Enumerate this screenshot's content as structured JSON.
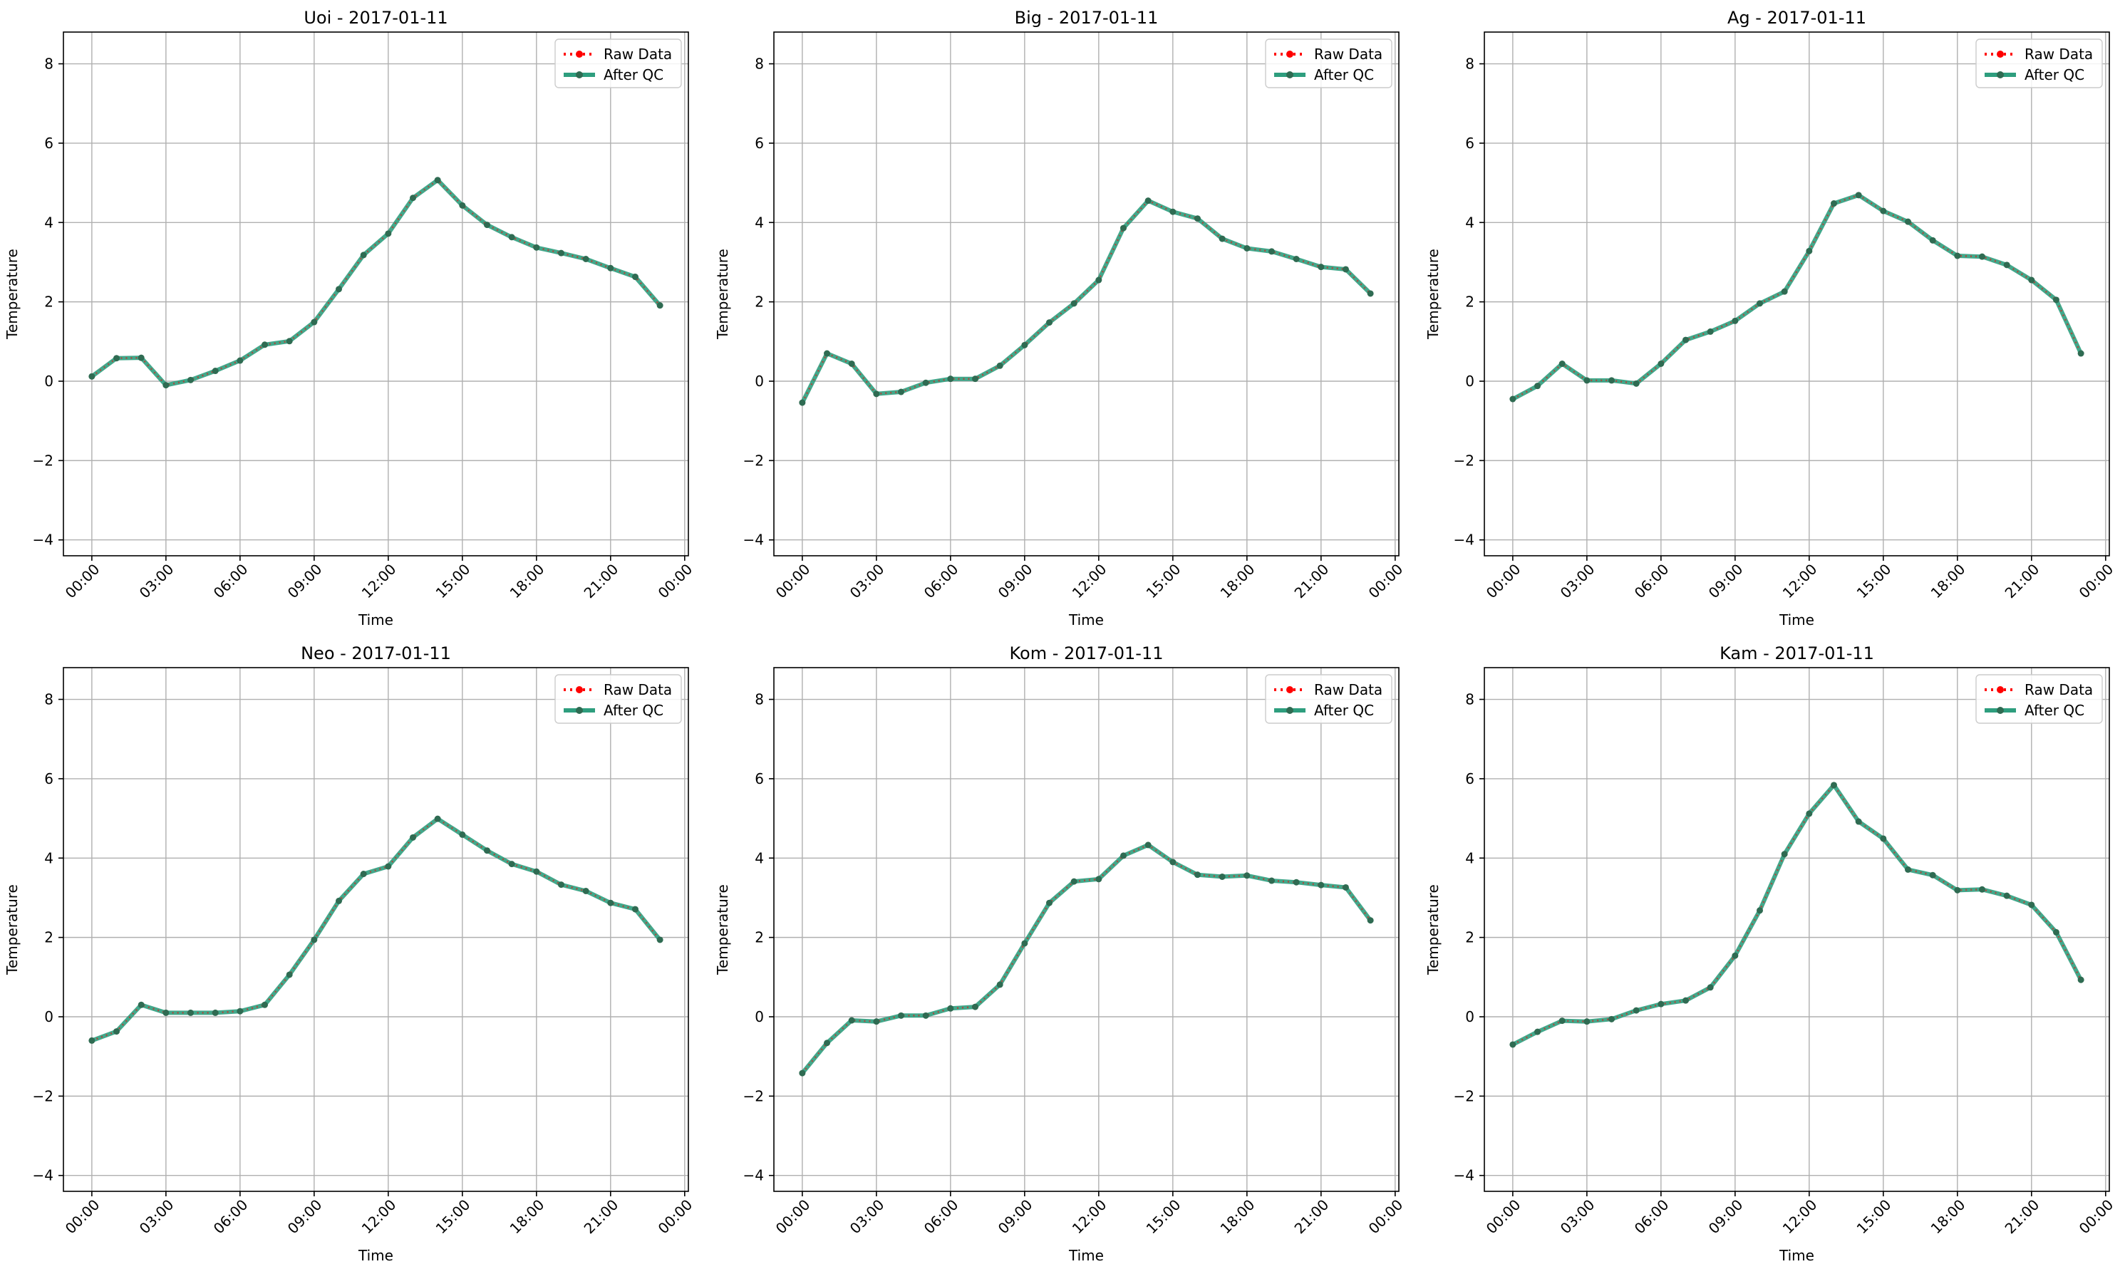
{
  "figure": {
    "legend": {
      "raw_label": "Raw Data",
      "qc_label": "After QC"
    },
    "colors": {
      "raw": "#ff0000",
      "qc": "#2e9e7e",
      "marker": "#2f6b52",
      "grid": "#b0b0b0",
      "axes": "#000000"
    }
  },
  "chart_data": [
    {
      "type": "line",
      "title": "Uoi - 2017-01-11",
      "xlabel": "Time",
      "ylabel": "Temperature",
      "ylim": [
        -4.4,
        8.8
      ],
      "xlim": [
        "2017-01-10 22:51",
        "2017-01-12 00:09"
      ],
      "yticks": [
        -4,
        -2,
        0,
        2,
        4,
        6,
        8
      ],
      "xticks": [
        "00:00",
        "03:00",
        "06:00",
        "09:00",
        "12:00",
        "15:00",
        "18:00",
        "21:00",
        "00:00"
      ],
      "grid": true,
      "legend_position": "top-right",
      "x": [
        "00:00",
        "01:00",
        "02:00",
        "03:00",
        "04:00",
        "05:00",
        "06:00",
        "07:00",
        "08:00",
        "09:00",
        "10:00",
        "11:00",
        "12:00",
        "13:00",
        "14:00",
        "15:00",
        "16:00",
        "17:00",
        "18:00",
        "19:00",
        "20:00",
        "21:00",
        "22:00",
        "23:00"
      ],
      "series": [
        {
          "name": "Raw Data",
          "values": [
            0.12,
            0.58,
            0.59,
            -0.1,
            0.03,
            0.26,
            0.52,
            0.92,
            1.01,
            1.49,
            2.32,
            3.18,
            3.72,
            4.62,
            5.07,
            4.43,
            3.94,
            3.63,
            3.37,
            3.23,
            3.08,
            2.85,
            2.63,
            1.91
          ]
        },
        {
          "name": "After QC",
          "values": [
            0.12,
            0.58,
            0.59,
            -0.1,
            0.03,
            0.26,
            0.52,
            0.92,
            1.01,
            1.49,
            2.32,
            3.18,
            3.72,
            4.62,
            5.07,
            4.43,
            3.94,
            3.63,
            3.37,
            3.23,
            3.08,
            2.85,
            2.63,
            1.91
          ]
        }
      ]
    },
    {
      "type": "line",
      "title": "Big - 2017-01-11",
      "xlabel": "Time",
      "ylabel": "Temperature",
      "ylim": [
        -4.4,
        8.8
      ],
      "xlim": [
        "2017-01-10 22:51",
        "2017-01-12 00:09"
      ],
      "yticks": [
        -4,
        -2,
        0,
        2,
        4,
        6,
        8
      ],
      "xticks": [
        "00:00",
        "03:00",
        "06:00",
        "09:00",
        "12:00",
        "15:00",
        "18:00",
        "21:00",
        "00:00"
      ],
      "grid": true,
      "legend_position": "top-right",
      "x": [
        "00:00",
        "01:00",
        "02:00",
        "03:00",
        "04:00",
        "05:00",
        "06:00",
        "07:00",
        "08:00",
        "09:00",
        "10:00",
        "11:00",
        "12:00",
        "13:00",
        "14:00",
        "15:00",
        "16:00",
        "17:00",
        "18:00",
        "19:00",
        "20:00",
        "21:00",
        "22:00",
        "23:00"
      ],
      "series": [
        {
          "name": "Raw Data",
          "values": [
            -0.54,
            0.7,
            0.44,
            -0.32,
            -0.27,
            -0.04,
            0.06,
            0.06,
            0.39,
            0.91,
            1.48,
            1.96,
            2.55,
            3.86,
            4.55,
            4.27,
            4.1,
            3.59,
            3.35,
            3.27,
            3.08,
            2.88,
            2.82,
            2.21
          ]
        },
        {
          "name": "After QC",
          "values": [
            -0.54,
            0.7,
            0.44,
            -0.32,
            -0.27,
            -0.04,
            0.06,
            0.06,
            0.39,
            0.91,
            1.48,
            1.96,
            2.55,
            3.86,
            4.55,
            4.27,
            4.1,
            3.59,
            3.35,
            3.27,
            3.08,
            2.88,
            2.82,
            2.21
          ]
        }
      ]
    },
    {
      "type": "line",
      "title": "Ag - 2017-01-11",
      "xlabel": "Time",
      "ylabel": "Temperature",
      "ylim": [
        -4.4,
        8.8
      ],
      "xlim": [
        "2017-01-10 22:51",
        "2017-01-12 00:09"
      ],
      "yticks": [
        -4,
        -2,
        0,
        2,
        4,
        6,
        8
      ],
      "xticks": [
        "00:00",
        "03:00",
        "06:00",
        "09:00",
        "12:00",
        "15:00",
        "18:00",
        "21:00",
        "00:00"
      ],
      "grid": true,
      "legend_position": "top-right",
      "x": [
        "00:00",
        "01:00",
        "02:00",
        "03:00",
        "04:00",
        "05:00",
        "06:00",
        "07:00",
        "08:00",
        "09:00",
        "10:00",
        "11:00",
        "12:00",
        "13:00",
        "14:00",
        "15:00",
        "16:00",
        "17:00",
        "18:00",
        "19:00",
        "20:00",
        "21:00",
        "22:00",
        "23:00"
      ],
      "series": [
        {
          "name": "Raw Data",
          "values": [
            -0.45,
            -0.12,
            0.44,
            0.02,
            0.02,
            -0.06,
            0.44,
            1.04,
            1.25,
            1.52,
            1.96,
            2.26,
            3.28,
            4.48,
            4.69,
            4.29,
            4.02,
            3.55,
            3.16,
            3.14,
            2.93,
            2.55,
            2.05,
            0.7
          ]
        },
        {
          "name": "After QC",
          "values": [
            -0.45,
            -0.12,
            0.44,
            0.02,
            0.02,
            -0.06,
            0.44,
            1.04,
            1.25,
            1.52,
            1.96,
            2.26,
            3.28,
            4.48,
            4.69,
            4.29,
            4.02,
            3.55,
            3.16,
            3.14,
            2.93,
            2.55,
            2.05,
            0.7
          ]
        }
      ]
    },
    {
      "type": "line",
      "title": "Neo - 2017-01-11",
      "xlabel": "Time",
      "ylabel": "Temperature",
      "ylim": [
        -4.4,
        8.8
      ],
      "xlim": [
        "2017-01-10 22:51",
        "2017-01-12 00:09"
      ],
      "yticks": [
        -4,
        -2,
        0,
        2,
        4,
        6,
        8
      ],
      "xticks": [
        "00:00",
        "03:00",
        "06:00",
        "09:00",
        "12:00",
        "15:00",
        "18:00",
        "21:00",
        "00:00"
      ],
      "grid": true,
      "legend_position": "top-right",
      "x": [
        "00:00",
        "01:00",
        "02:00",
        "03:00",
        "04:00",
        "05:00",
        "06:00",
        "07:00",
        "08:00",
        "09:00",
        "10:00",
        "11:00",
        "12:00",
        "13:00",
        "14:00",
        "15:00",
        "16:00",
        "17:00",
        "18:00",
        "19:00",
        "20:00",
        "21:00",
        "22:00",
        "23:00"
      ],
      "series": [
        {
          "name": "Raw Data",
          "values": [
            -0.6,
            -0.37,
            0.3,
            0.1,
            0.1,
            0.1,
            0.14,
            0.3,
            1.06,
            1.94,
            2.92,
            3.6,
            3.79,
            4.52,
            4.99,
            4.59,
            4.19,
            3.85,
            3.66,
            3.33,
            3.17,
            2.87,
            2.71,
            1.94
          ]
        },
        {
          "name": "After QC",
          "values": [
            -0.6,
            -0.37,
            0.3,
            0.1,
            0.1,
            0.1,
            0.14,
            0.3,
            1.06,
            1.94,
            2.92,
            3.6,
            3.79,
            4.52,
            4.99,
            4.59,
            4.19,
            3.85,
            3.66,
            3.33,
            3.17,
            2.87,
            2.71,
            1.94
          ]
        }
      ]
    },
    {
      "type": "line",
      "title": "Kom - 2017-01-11",
      "xlabel": "Time",
      "ylabel": "Temperature",
      "ylim": [
        -4.4,
        8.8
      ],
      "xlim": [
        "2017-01-10 22:51",
        "2017-01-12 00:09"
      ],
      "yticks": [
        -4,
        -2,
        0,
        2,
        4,
        6,
        8
      ],
      "xticks": [
        "00:00",
        "03:00",
        "06:00",
        "09:00",
        "12:00",
        "15:00",
        "18:00",
        "21:00",
        "00:00"
      ],
      "grid": true,
      "legend_position": "top-right",
      "x": [
        "00:00",
        "01:00",
        "02:00",
        "03:00",
        "04:00",
        "05:00",
        "06:00",
        "07:00",
        "08:00",
        "09:00",
        "10:00",
        "11:00",
        "12:00",
        "13:00",
        "14:00",
        "15:00",
        "16:00",
        "17:00",
        "18:00",
        "19:00",
        "20:00",
        "21:00",
        "22:00",
        "23:00"
      ],
      "series": [
        {
          "name": "Raw Data",
          "values": [
            -1.42,
            -0.66,
            -0.09,
            -0.12,
            0.03,
            0.03,
            0.21,
            0.25,
            0.81,
            1.85,
            2.87,
            3.41,
            3.47,
            4.06,
            4.33,
            3.9,
            3.58,
            3.53,
            3.56,
            3.43,
            3.39,
            3.32,
            3.26,
            2.43
          ]
        },
        {
          "name": "After QC",
          "values": [
            -1.42,
            -0.66,
            -0.09,
            -0.12,
            0.03,
            0.03,
            0.21,
            0.25,
            0.81,
            1.85,
            2.87,
            3.41,
            3.47,
            4.06,
            4.33,
            3.9,
            3.58,
            3.53,
            3.56,
            3.43,
            3.39,
            3.32,
            3.26,
            2.43
          ]
        }
      ]
    },
    {
      "type": "line",
      "title": "Kam - 2017-01-11",
      "xlabel": "Time",
      "ylabel": "Temperature",
      "ylim": [
        -4.4,
        8.8
      ],
      "xlim": [
        "2017-01-10 22:51",
        "2017-01-12 00:09"
      ],
      "yticks": [
        -4,
        -2,
        0,
        2,
        4,
        6,
        8
      ],
      "xticks": [
        "00:00",
        "03:00",
        "06:00",
        "09:00",
        "12:00",
        "15:00",
        "18:00",
        "21:00",
        "00:00"
      ],
      "grid": true,
      "legend_position": "top-right",
      "x": [
        "00:00",
        "01:00",
        "02:00",
        "03:00",
        "04:00",
        "05:00",
        "06:00",
        "07:00",
        "08:00",
        "09:00",
        "10:00",
        "11:00",
        "12:00",
        "13:00",
        "14:00",
        "15:00",
        "16:00",
        "17:00",
        "18:00",
        "19:00",
        "20:00",
        "21:00",
        "22:00",
        "23:00"
      ],
      "series": [
        {
          "name": "Raw Data",
          "values": [
            -0.7,
            -0.38,
            -0.1,
            -0.12,
            -0.06,
            0.16,
            0.32,
            0.41,
            0.74,
            1.54,
            2.68,
            4.1,
            5.12,
            5.84,
            4.92,
            4.49,
            3.71,
            3.57,
            3.19,
            3.21,
            3.05,
            2.82,
            2.13,
            0.93
          ]
        },
        {
          "name": "After QC",
          "values": [
            -0.7,
            -0.38,
            -0.1,
            -0.12,
            -0.06,
            0.16,
            0.32,
            0.41,
            0.74,
            1.54,
            2.68,
            4.1,
            5.12,
            5.84,
            4.92,
            4.49,
            3.71,
            3.57,
            3.19,
            3.21,
            3.05,
            2.82,
            2.13,
            0.93
          ]
        }
      ]
    }
  ]
}
